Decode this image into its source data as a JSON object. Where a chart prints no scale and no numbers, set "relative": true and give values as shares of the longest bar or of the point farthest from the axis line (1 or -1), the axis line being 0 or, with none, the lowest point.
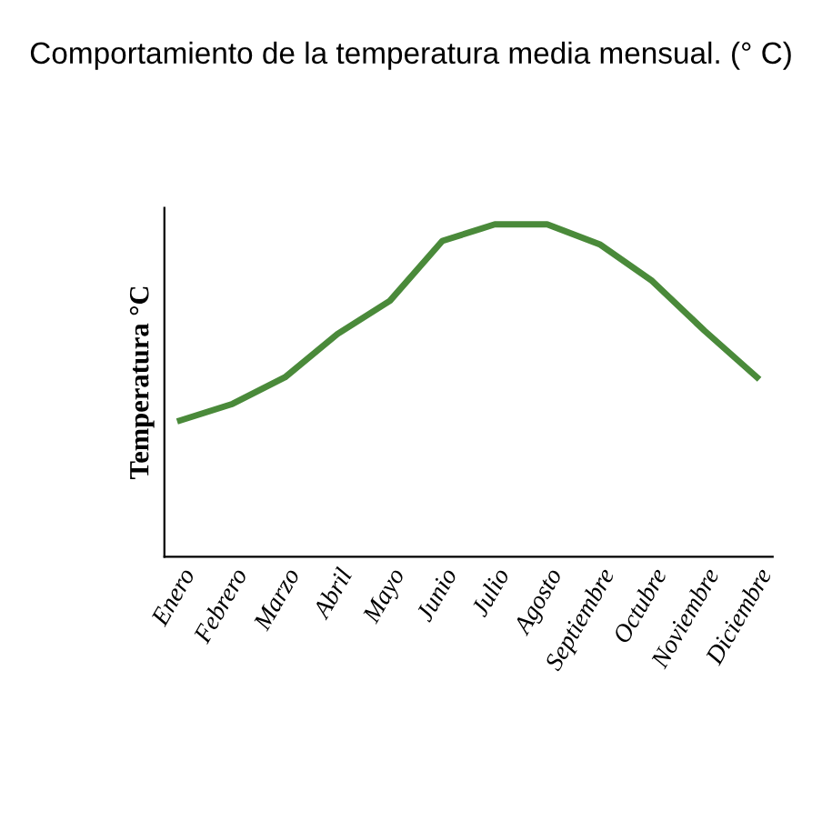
{
  "chart_data": {
    "type": "line",
    "title": "Comportamiento de la temperatura media mensual. (° C)",
    "ylabel": "Temperatura °C",
    "relative": true,
    "categories": [
      "Enero",
      "Febrero",
      "Marzo",
      "Abril",
      "Mayo",
      "Junio",
      "Julio",
      "Agosto",
      "Septiembre",
      "Octubre",
      "Noviembre",
      "Diciembre"
    ],
    "series": [
      {
        "color": "#4a8a3a",
        "values": [
          0.41,
          0.46,
          0.54,
          0.67,
          0.77,
          0.95,
          1,
          1,
          0.94,
          0.83,
          0.68,
          0.54
        ]
      }
    ],
    "marker": "none",
    "line_style": "solid"
  }
}
